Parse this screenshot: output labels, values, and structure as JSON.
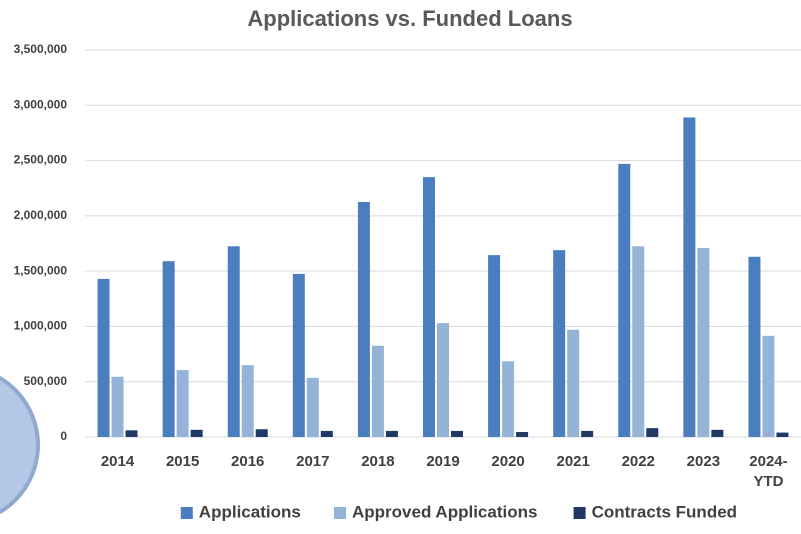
{
  "chart_data": {
    "type": "bar",
    "title": "Applications vs. Funded Loans",
    "categories": [
      "2014",
      "2015",
      "2016",
      "2017",
      "2018",
      "2019",
      "2020",
      "2021",
      "2022",
      "2023",
      "2024-YTD"
    ],
    "series": [
      {
        "name": "Applications",
        "color": "#4a7ebf",
        "values": [
          1430000,
          1590000,
          1725000,
          1475000,
          2125000,
          2350000,
          1645000,
          1690000,
          2470000,
          2890000,
          1630000
        ]
      },
      {
        "name": "Approved Applications",
        "color": "#95b3d7",
        "values": [
          545000,
          605000,
          650000,
          535000,
          825000,
          1030000,
          685000,
          970000,
          1725000,
          1710000,
          915000
        ]
      },
      {
        "name": "Contracts Funded",
        "color": "#1f3864",
        "values": [
          60000,
          65000,
          70000,
          55000,
          55000,
          55000,
          45000,
          55000,
          80000,
          65000,
          40000
        ]
      }
    ],
    "ylim": [
      0,
      3500000
    ],
    "yticks": [
      0,
      {
        "value": 500000,
        "label": "500,000"
      },
      {
        "value": 1000000,
        "label": "1,000,000"
      },
      {
        "value": 1500000,
        "label": "1,500,000"
      },
      {
        "value": 2000000,
        "label": "2,000,000"
      },
      {
        "value": 2500000,
        "label": "2,500,000"
      },
      {
        "value": 3000000,
        "label": "3,000,000"
      },
      {
        "value": 3500000,
        "label": "3,500,000"
      }
    ],
    "grid": true
  }
}
